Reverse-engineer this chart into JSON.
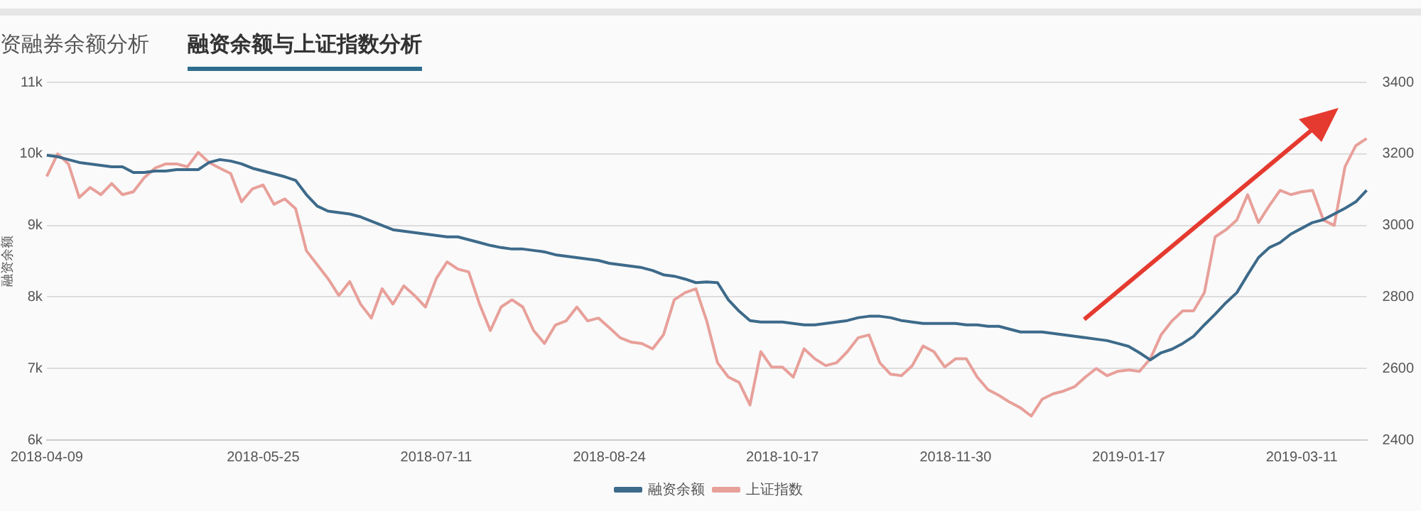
{
  "chart_data": {
    "type": "line",
    "title": "融资余额与上证指数分析",
    "subtitle": "资融券余额分析",
    "ylabel": "融资余额",
    "categories": [
      "2018-04-09",
      null,
      null,
      null,
      null,
      null,
      null,
      null,
      null,
      null,
      null,
      null,
      null,
      null,
      null,
      null,
      null,
      null,
      null,
      null,
      "2018-05-25",
      null,
      null,
      null,
      null,
      null,
      null,
      null,
      null,
      null,
      null,
      null,
      null,
      null,
      null,
      null,
      "2018-07-11",
      null,
      null,
      null,
      null,
      null,
      null,
      null,
      null,
      null,
      null,
      null,
      null,
      null,
      null,
      null,
      "2018-08-24",
      null,
      null,
      null,
      null,
      null,
      null,
      null,
      null,
      null,
      null,
      null,
      null,
      null,
      null,
      null,
      "2018-10-17",
      null,
      null,
      null,
      null,
      null,
      null,
      null,
      null,
      null,
      null,
      null,
      null,
      null,
      null,
      null,
      "2018-11-30",
      null,
      null,
      null,
      null,
      null,
      null,
      null,
      null,
      null,
      null,
      null,
      null,
      null,
      null,
      null,
      "2019-01-17",
      null,
      null,
      null,
      null,
      null,
      null,
      null,
      null,
      null,
      null,
      null,
      null,
      null,
      null,
      null,
      "2019-03-11",
      null,
      null,
      null,
      null,
      null,
      null
    ],
    "series": [
      {
        "name": "融资余额",
        "color": "#3d6a8a",
        "values": [
          9980,
          9960,
          9920,
          9880,
          9860,
          9840,
          9820,
          9820,
          9740,
          9740,
          9760,
          9760,
          9780,
          9780,
          9780,
          9880,
          9920,
          9900,
          9860,
          9800,
          9760,
          9720,
          9680,
          9630,
          9430,
          9270,
          9200,
          9180,
          9160,
          9120,
          9060,
          9000,
          8940,
          8920,
          8900,
          8880,
          8860,
          8840,
          8840,
          8800,
          8760,
          8720,
          8690,
          8670,
          8670,
          8650,
          8630,
          8590,
          8570,
          8550,
          8530,
          8510,
          8470,
          8450,
          8430,
          8410,
          8370,
          8310,
          8290,
          8250,
          8200,
          8210,
          8200,
          7960,
          7800,
          7670,
          7650,
          7650,
          7650,
          7630,
          7610,
          7610,
          7630,
          7650,
          7670,
          7710,
          7730,
          7730,
          7710,
          7670,
          7650,
          7630,
          7630,
          7630,
          7630,
          7610,
          7610,
          7590,
          7590,
          7550,
          7510,
          7510,
          7510,
          7490,
          7470,
          7450,
          7430,
          7410,
          7390,
          7350,
          7310,
          7220,
          7120,
          7220,
          7270,
          7350,
          7450,
          7610,
          7760,
          7920,
          8060,
          8310,
          8550,
          8690,
          8760,
          8880,
          8960,
          9040,
          9080,
          9160,
          9240,
          9330,
          9490
        ]
      },
      {
        "name": "上证指数",
        "color": "#e8a09a",
        "axis": "y2",
        "values": [
          3137,
          3200,
          3172,
          3078,
          3106,
          3086,
          3117,
          3086,
          3094,
          3133,
          3160,
          3172,
          3172,
          3164,
          3204,
          3176,
          3160,
          3145,
          3066,
          3102,
          3113,
          3059,
          3074,
          3047,
          2929,
          2890,
          2851,
          2804,
          2843,
          2780,
          2741,
          2823,
          2780,
          2831,
          2804,
          2772,
          2851,
          2898,
          2878,
          2870,
          2780,
          2706,
          2772,
          2792,
          2772,
          2706,
          2670,
          2721,
          2733,
          2772,
          2733,
          2741,
          2714,
          2686,
          2674,
          2670,
          2655,
          2694,
          2792,
          2812,
          2823,
          2733,
          2616,
          2576,
          2561,
          2498,
          2647,
          2604,
          2604,
          2576,
          2655,
          2627,
          2608,
          2616,
          2647,
          2686,
          2694,
          2616,
          2584,
          2580,
          2608,
          2663,
          2647,
          2604,
          2627,
          2627,
          2576,
          2541,
          2525,
          2506,
          2490,
          2467,
          2514,
          2529,
          2537,
          2549,
          2576,
          2600,
          2580,
          2592,
          2596,
          2592,
          2627,
          2694,
          2733,
          2761,
          2761,
          2812,
          2968,
          2988,
          3015,
          3086,
          3008,
          3055,
          3098,
          3086,
          3094,
          3098,
          3015,
          3000,
          3164,
          3223,
          3243
        ]
      }
    ],
    "ylim": [
      6000,
      11000
    ],
    "yticks": [
      {
        "value": 6000,
        "label": "6k"
      },
      {
        "value": 7000,
        "label": "7k"
      },
      {
        "value": 8000,
        "label": "8k"
      },
      {
        "value": 9000,
        "label": "9k"
      },
      {
        "value": 10000,
        "label": "10k"
      },
      {
        "value": 11000,
        "label": "11k"
      }
    ],
    "y2lim": [
      2400,
      3400
    ],
    "y2ticks": [
      2400,
      2600,
      2800,
      3000,
      3200,
      3400
    ],
    "grid": "y",
    "legend": "bottom",
    "marker": "none",
    "line_style": "solid"
  }
}
